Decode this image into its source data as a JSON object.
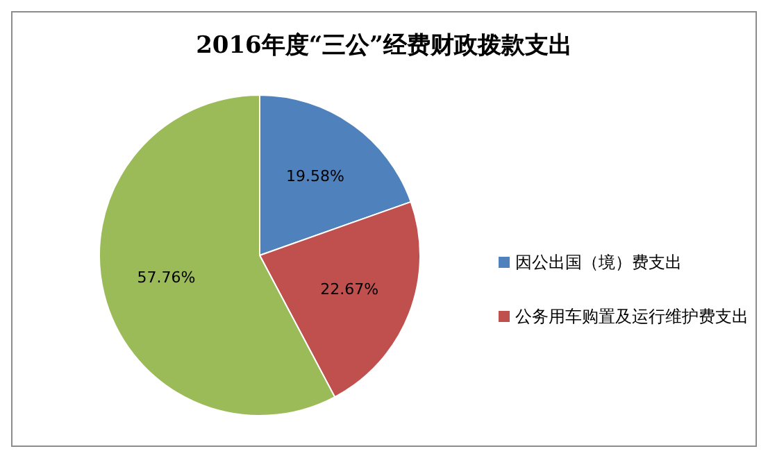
{
  "chart_data": {
    "type": "pie",
    "title": "2016年度“三公”经费财政拨款支出",
    "categories": [
      "因公出国（境）费支出",
      "公务用车购置及运行维护费支出",
      null
    ],
    "values": [
      19.58,
      22.67,
      57.76
    ],
    "colors": [
      "#4f81bd",
      "#c0504d",
      "#9bbb59"
    ],
    "value_labels": [
      "19.58%",
      "22.67%",
      "57.76%"
    ],
    "legend": "right"
  }
}
